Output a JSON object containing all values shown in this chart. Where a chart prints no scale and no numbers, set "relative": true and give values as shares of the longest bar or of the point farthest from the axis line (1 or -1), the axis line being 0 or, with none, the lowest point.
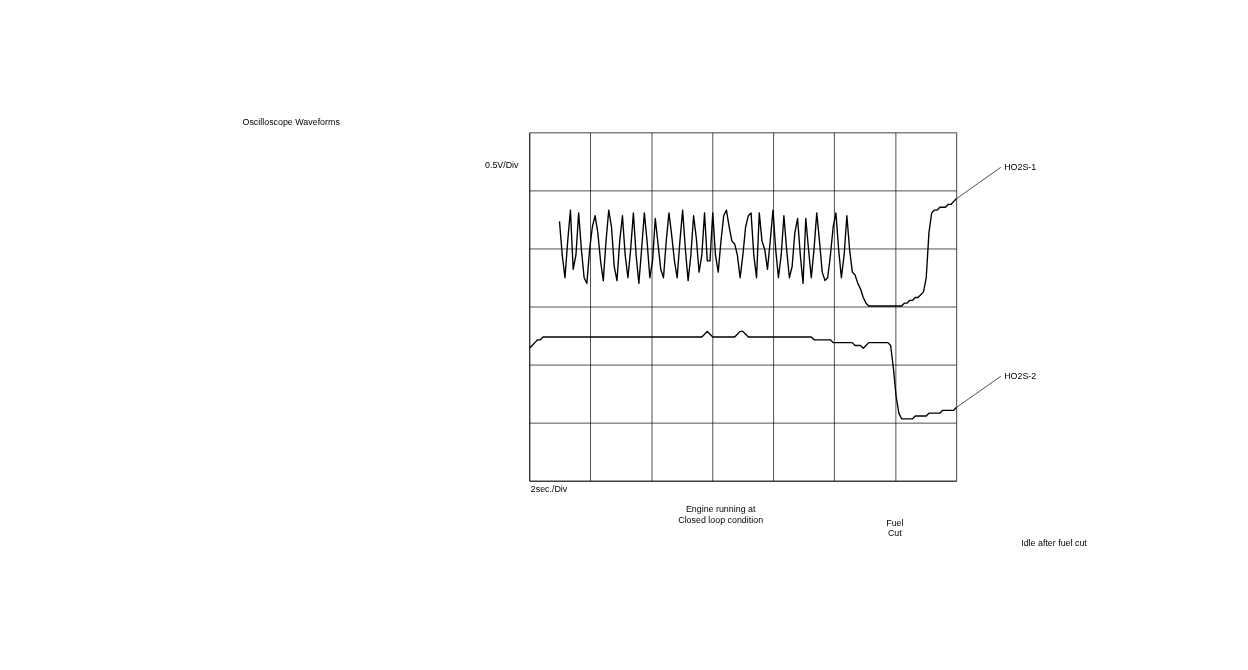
{
  "chart_data": {
    "type": "line",
    "title": "Oscilloscope Waveforms",
    "relative": true,
    "grid": true,
    "marker": "none",
    "line_style": "solid",
    "categories": [
      null,
      null,
      null,
      null,
      null,
      null,
      null,
      null,
      null,
      null,
      null,
      null,
      null,
      null,
      null,
      null,
      null,
      null,
      null,
      null,
      null,
      null,
      null,
      null,
      null,
      null,
      null,
      null,
      null,
      null,
      null,
      null,
      null,
      null,
      null,
      null,
      null,
      null,
      null,
      null,
      null,
      null,
      null,
      null,
      null,
      null,
      null,
      null,
      null,
      null,
      null,
      null,
      null,
      null,
      null,
      null,
      null,
      null,
      null,
      null,
      null,
      null,
      null,
      null,
      null,
      null,
      null,
      null,
      null,
      null,
      null,
      null,
      null,
      null,
      null,
      null,
      null,
      null,
      null,
      null,
      null,
      null,
      null,
      null,
      null,
      null,
      null,
      null,
      null,
      null,
      null,
      null,
      null,
      null,
      null,
      null,
      null,
      null,
      null,
      null,
      null,
      null,
      null,
      null,
      null,
      null,
      null,
      null,
      null,
      null,
      null,
      null,
      null,
      null,
      null,
      null,
      null,
      null,
      null,
      null,
      null,
      null,
      null,
      null,
      null,
      null,
      null,
      null,
      null,
      null,
      null,
      null,
      null,
      null,
      null,
      null,
      null,
      null,
      null,
      null,
      null,
      null,
      null,
      null,
      null,
      null,
      null,
      null,
      null,
      null,
      null,
      null,
      null,
      null,
      null,
      null,
      null
    ],
    "series": [
      {
        "name": "HO2S-1",
        "color": "#000000",
        "values": [
          null,
          null,
          null,
          null,
          null,
          null,
          null,
          null,
          null,
          null,
          null,
          0.92,
          0.8,
          0.72,
          0.85,
          0.96,
          0.75,
          0.8,
          0.95,
          0.82,
          0.72,
          0.7,
          0.82,
          0.9,
          0.94,
          0.88,
          0.78,
          0.71,
          0.85,
          0.96,
          0.9,
          0.76,
          0.71,
          0.85,
          0.94,
          0.8,
          0.72,
          0.82,
          0.95,
          0.8,
          0.7,
          0.82,
          0.95,
          0.85,
          0.72,
          0.78,
          0.93,
          0.84,
          0.75,
          0.72,
          0.85,
          0.95,
          0.87,
          0.78,
          0.72,
          0.85,
          0.96,
          0.82,
          0.71,
          0.8,
          0.94,
          0.86,
          0.74,
          0.8,
          0.95,
          0.78,
          0.78,
          0.95,
          0.8,
          0.74,
          0.85,
          0.94,
          0.96,
          0.9,
          0.85,
          0.84,
          0.8,
          0.72,
          0.8,
          0.9,
          0.94,
          0.95,
          0.8,
          0.72,
          0.95,
          0.85,
          0.82,
          0.75,
          0.85,
          0.96,
          0.82,
          0.72,
          0.8,
          0.94,
          0.82,
          0.72,
          0.76,
          0.88,
          0.93,
          0.8,
          0.7,
          0.93,
          0.82,
          0.72,
          0.82,
          0.95,
          0.85,
          0.74,
          0.71,
          0.72,
          0.8,
          0.9,
          0.95,
          0.82,
          0.72,
          0.8,
          0.94,
          0.82,
          0.74,
          0.73,
          0.7,
          0.68,
          0.65,
          0.63,
          0.62,
          0.62,
          0.62,
          0.62,
          0.62,
          0.62,
          0.62,
          0.62,
          0.62,
          0.62,
          0.62,
          0.62,
          0.62,
          0.63,
          0.63,
          0.64,
          0.64,
          0.65,
          0.65,
          0.66,
          0.67,
          0.72,
          0.88,
          0.95,
          0.96,
          0.96,
          0.97,
          0.97,
          0.97,
          0.98,
          0.98,
          0.99,
          1.0
        ]
      },
      {
        "name": "HO2S-2",
        "color": "#000000",
        "values": [
          0.47,
          0.48,
          0.49,
          0.5,
          0.5,
          0.51,
          0.51,
          0.51,
          0.51,
          0.51,
          0.51,
          0.51,
          0.51,
          0.51,
          0.51,
          0.51,
          0.51,
          0.51,
          0.51,
          0.51,
          0.51,
          0.51,
          0.51,
          0.51,
          0.51,
          0.51,
          0.51,
          0.51,
          0.51,
          0.51,
          0.51,
          0.51,
          0.51,
          0.51,
          0.51,
          0.51,
          0.51,
          0.51,
          0.51,
          0.51,
          0.51,
          0.51,
          0.51,
          0.51,
          0.51,
          0.51,
          0.51,
          0.51,
          0.51,
          0.51,
          0.51,
          0.51,
          0.51,
          0.51,
          0.51,
          0.51,
          0.51,
          0.51,
          0.51,
          0.51,
          0.51,
          0.51,
          0.51,
          0.51,
          0.52,
          0.53,
          0.52,
          0.51,
          0.51,
          0.51,
          0.51,
          0.51,
          0.51,
          0.51,
          0.51,
          0.51,
          0.52,
          0.53,
          0.53,
          0.52,
          0.51,
          0.51,
          0.51,
          0.51,
          0.51,
          0.51,
          0.51,
          0.51,
          0.51,
          0.51,
          0.51,
          0.51,
          0.51,
          0.51,
          0.51,
          0.51,
          0.51,
          0.51,
          0.51,
          0.51,
          0.51,
          0.51,
          0.51,
          0.51,
          0.5,
          0.5,
          0.5,
          0.5,
          0.5,
          0.5,
          0.5,
          0.49,
          0.49,
          0.49,
          0.49,
          0.49,
          0.49,
          0.49,
          0.49,
          0.48,
          0.48,
          0.48,
          0.47,
          0.48,
          0.49,
          0.49,
          0.49,
          0.49,
          0.49,
          0.49,
          0.49,
          0.49,
          0.48,
          0.4,
          0.3,
          0.24,
          0.22,
          0.22,
          0.22,
          0.22,
          0.22,
          0.23,
          0.23,
          0.23,
          0.23,
          0.23,
          0.24,
          0.24,
          0.24,
          0.24,
          0.24,
          0.25,
          0.25,
          0.25,
          0.25,
          0.25,
          0.26
        ]
      }
    ],
    "annotations": [
      "0.5V/Div",
      "2sec./Div",
      "Engine running at\nClosed loop condition",
      "Fuel\nCut",
      "Idle after fuel cut"
    ]
  }
}
